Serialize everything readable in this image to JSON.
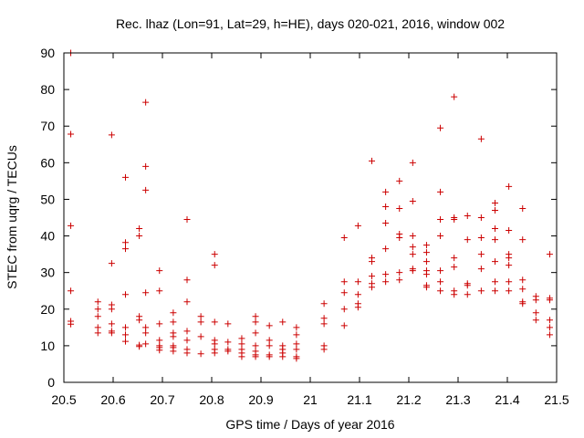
{
  "chart_data": {
    "type": "scatter",
    "title": "Rec. lhaz (Lon=91, Lat=29, h=HE), days 020-021, 2016, window 002",
    "xlabel": "GPS time / Days of year 2016",
    "ylabel": "STEC from uqrg / TECUs",
    "xlim": [
      20.5,
      21.5
    ],
    "ylim": [
      0,
      90
    ],
    "x_ticks": [
      "20.5",
      "20.6",
      "20.7",
      "20.8",
      "20.9",
      "21",
      "21.1",
      "21.2",
      "21.3",
      "21.4",
      "21.5"
    ],
    "y_ticks": [
      "0",
      "10",
      "20",
      "30",
      "40",
      "50",
      "60",
      "70",
      "80",
      "90"
    ],
    "grid": false,
    "marker": "plus",
    "marker_color": "#cc0000",
    "points": [
      [
        20.514,
        90.0
      ],
      [
        20.514,
        67.8
      ],
      [
        20.514,
        42.8
      ],
      [
        20.514,
        25.0
      ],
      [
        20.514,
        16.7
      ],
      [
        20.514,
        15.9
      ],
      [
        20.569,
        22.0
      ],
      [
        20.569,
        20.0
      ],
      [
        20.569,
        18.0
      ],
      [
        20.569,
        15.0
      ],
      [
        20.569,
        13.5
      ],
      [
        20.597,
        67.6
      ],
      [
        20.597,
        32.5
      ],
      [
        20.597,
        21.2
      ],
      [
        20.597,
        20.0
      ],
      [
        20.597,
        16.0
      ],
      [
        20.597,
        14.0
      ],
      [
        20.597,
        13.5
      ],
      [
        20.625,
        56.0
      ],
      [
        20.625,
        38.2
      ],
      [
        20.625,
        36.5
      ],
      [
        20.625,
        24.0
      ],
      [
        20.625,
        15.0
      ],
      [
        20.625,
        13.0
      ],
      [
        20.625,
        11.2
      ],
      [
        20.653,
        42.0
      ],
      [
        20.653,
        40.0
      ],
      [
        20.653,
        18.0
      ],
      [
        20.653,
        17.0
      ],
      [
        20.653,
        10.2
      ],
      [
        20.653,
        9.8
      ],
      [
        20.666,
        76.5
      ],
      [
        20.666,
        59.0
      ],
      [
        20.666,
        52.5
      ],
      [
        20.666,
        24.5
      ],
      [
        20.666,
        15.0
      ],
      [
        20.666,
        13.5
      ],
      [
        20.666,
        10.5
      ],
      [
        20.694,
        30.5
      ],
      [
        20.694,
        25.0
      ],
      [
        20.694,
        16.0
      ],
      [
        20.694,
        11.5
      ],
      [
        20.694,
        10.0
      ],
      [
        20.694,
        9.5
      ],
      [
        20.694,
        8.8
      ],
      [
        20.722,
        19.0
      ],
      [
        20.722,
        16.5
      ],
      [
        20.722,
        13.5
      ],
      [
        20.722,
        12.5
      ],
      [
        20.722,
        10.0
      ],
      [
        20.722,
        9.5
      ],
      [
        20.722,
        8.5
      ],
      [
        20.75,
        44.5
      ],
      [
        20.75,
        28.0
      ],
      [
        20.75,
        22.0
      ],
      [
        20.75,
        14.0
      ],
      [
        20.75,
        11.5
      ],
      [
        20.75,
        9.0
      ],
      [
        20.75,
        8.0
      ],
      [
        20.778,
        18.0
      ],
      [
        20.778,
        16.5
      ],
      [
        20.778,
        12.5
      ],
      [
        20.778,
        7.8
      ],
      [
        20.806,
        35.0
      ],
      [
        20.806,
        32.0
      ],
      [
        20.806,
        16.5
      ],
      [
        20.806,
        11.5
      ],
      [
        20.806,
        10.5
      ],
      [
        20.806,
        9.0
      ],
      [
        20.806,
        8.0
      ],
      [
        20.833,
        16.0
      ],
      [
        20.833,
        11.0
      ],
      [
        20.833,
        9.0
      ],
      [
        20.833,
        8.5
      ],
      [
        20.861,
        12.0
      ],
      [
        20.861,
        10.5
      ],
      [
        20.861,
        9.0
      ],
      [
        20.861,
        8.0
      ],
      [
        20.861,
        7.0
      ],
      [
        20.889,
        18.0
      ],
      [
        20.889,
        16.5
      ],
      [
        20.889,
        13.5
      ],
      [
        20.889,
        10.0
      ],
      [
        20.889,
        8.5
      ],
      [
        20.889,
        7.5
      ],
      [
        20.889,
        7.0
      ],
      [
        20.917,
        15.5
      ],
      [
        20.917,
        11.5
      ],
      [
        20.917,
        10.0
      ],
      [
        20.917,
        7.5
      ],
      [
        20.917,
        7.0
      ],
      [
        20.944,
        16.5
      ],
      [
        20.944,
        10.0
      ],
      [
        20.944,
        9.0
      ],
      [
        20.944,
        8.0
      ],
      [
        20.944,
        7.0
      ],
      [
        20.972,
        15.0
      ],
      [
        20.972,
        13.0
      ],
      [
        20.972,
        10.5
      ],
      [
        20.972,
        9.0
      ],
      [
        20.972,
        7.0
      ],
      [
        20.972,
        6.5
      ],
      [
        21.028,
        21.5
      ],
      [
        21.028,
        17.5
      ],
      [
        21.028,
        16.0
      ],
      [
        21.028,
        10.0
      ],
      [
        21.028,
        9.0
      ],
      [
        21.069,
        39.5
      ],
      [
        21.069,
        27.5
      ],
      [
        21.069,
        24.5
      ],
      [
        21.069,
        20.0
      ],
      [
        21.069,
        15.5
      ],
      [
        21.097,
        42.8
      ],
      [
        21.097,
        27.5
      ],
      [
        21.097,
        24.0
      ],
      [
        21.097,
        21.5
      ],
      [
        21.097,
        20.5
      ],
      [
        21.125,
        60.5
      ],
      [
        21.125,
        34.0
      ],
      [
        21.125,
        33.0
      ],
      [
        21.125,
        29.0
      ],
      [
        21.125,
        27.0
      ],
      [
        21.125,
        26.0
      ],
      [
        21.153,
        52.0
      ],
      [
        21.153,
        48.0
      ],
      [
        21.153,
        43.5
      ],
      [
        21.153,
        36.5
      ],
      [
        21.153,
        29.5
      ],
      [
        21.153,
        27.5
      ],
      [
        21.181,
        55.0
      ],
      [
        21.181,
        47.5
      ],
      [
        21.181,
        40.5
      ],
      [
        21.181,
        39.5
      ],
      [
        21.181,
        30.0
      ],
      [
        21.181,
        28.0
      ],
      [
        21.208,
        60.0
      ],
      [
        21.208,
        49.5
      ],
      [
        21.208,
        40.0
      ],
      [
        21.208,
        37.0
      ],
      [
        21.208,
        35.0
      ],
      [
        21.208,
        31.0
      ],
      [
        21.208,
        30.5
      ],
      [
        21.236,
        37.5
      ],
      [
        21.236,
        35.5
      ],
      [
        21.236,
        33.0
      ],
      [
        21.236,
        30.5
      ],
      [
        21.236,
        29.5
      ],
      [
        21.236,
        26.5
      ],
      [
        21.236,
        26.0
      ],
      [
        21.264,
        69.5
      ],
      [
        21.264,
        52.0
      ],
      [
        21.264,
        44.5
      ],
      [
        21.264,
        40.0
      ],
      [
        21.264,
        30.5
      ],
      [
        21.264,
        27.5
      ],
      [
        21.264,
        25.0
      ],
      [
        21.292,
        78.0
      ],
      [
        21.292,
        45.0
      ],
      [
        21.292,
        44.5
      ],
      [
        21.292,
        34.0
      ],
      [
        21.292,
        31.5
      ],
      [
        21.292,
        25.0
      ],
      [
        21.292,
        24.0
      ],
      [
        21.319,
        45.5
      ],
      [
        21.319,
        39.0
      ],
      [
        21.319,
        27.0
      ],
      [
        21.319,
        26.5
      ],
      [
        21.319,
        24.0
      ],
      [
        21.347,
        66.5
      ],
      [
        21.347,
        45.0
      ],
      [
        21.347,
        39.5
      ],
      [
        21.347,
        35.0
      ],
      [
        21.347,
        31.0
      ],
      [
        21.347,
        25.0
      ],
      [
        21.375,
        49.0
      ],
      [
        21.375,
        47.0
      ],
      [
        21.375,
        42.0
      ],
      [
        21.375,
        39.0
      ],
      [
        21.375,
        33.0
      ],
      [
        21.375,
        27.5
      ],
      [
        21.375,
        25.0
      ],
      [
        21.403,
        53.5
      ],
      [
        21.403,
        41.5
      ],
      [
        21.403,
        35.0
      ],
      [
        21.403,
        34.0
      ],
      [
        21.403,
        32.0
      ],
      [
        21.403,
        27.5
      ],
      [
        21.403,
        25.0
      ],
      [
        21.431,
        47.5
      ],
      [
        21.431,
        39.0
      ],
      [
        21.431,
        28.0
      ],
      [
        21.431,
        25.5
      ],
      [
        21.431,
        22.0
      ],
      [
        21.431,
        21.5
      ],
      [
        21.458,
        23.5
      ],
      [
        21.458,
        22.5
      ],
      [
        21.458,
        19.0
      ],
      [
        21.458,
        17.0
      ],
      [
        21.486,
        35.0
      ],
      [
        21.486,
        23.0
      ],
      [
        21.486,
        22.5
      ],
      [
        21.486,
        17.0
      ],
      [
        21.486,
        15.0
      ],
      [
        21.486,
        13.0
      ]
    ]
  }
}
